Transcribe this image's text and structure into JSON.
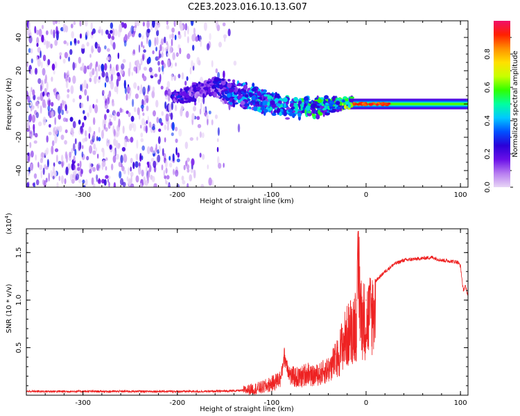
{
  "title": "C2E3.2023.016.10.13.G07",
  "chart_data": [
    {
      "type": "heatmap",
      "xlabel": "Height of straight line (km)",
      "ylabel": "Frequency (Hz)",
      "xlim": [
        -360,
        108
      ],
      "ylim": [
        -50,
        50
      ],
      "x_ticks": [
        {
          "value": -300,
          "label": "-300"
        },
        {
          "value": -200,
          "label": "-200"
        },
        {
          "value": -100,
          "label": "-100"
        },
        {
          "value": 0,
          "label": "0"
        },
        {
          "value": 100,
          "label": "100"
        }
      ],
      "y_ticks": [
        {
          "value": -40,
          "label": "-40"
        },
        {
          "value": -20,
          "label": "-20"
        },
        {
          "value": 0,
          "label": "0"
        },
        {
          "value": 20,
          "label": "20"
        },
        {
          "value": 40,
          "label": "40"
        }
      ],
      "colorbar": {
        "label": "Normalized spectral amplitude",
        "range": [
          0,
          1
        ],
        "ticks": [
          {
            "value": 0.0,
            "label": "0.0"
          },
          {
            "value": 0.2,
            "label": "0.2"
          },
          {
            "value": 0.4,
            "label": "0.4"
          },
          {
            "value": 0.6,
            "label": "0.6"
          },
          {
            "value": 0.8,
            "label": "0.8"
          }
        ],
        "colors": [
          "#e8d6f6",
          "#b77cf0",
          "#6a0fe8",
          "#2a00d8",
          "#0050ff",
          "#00c8ff",
          "#00ffa0",
          "#30ff00",
          "#c8ff00",
          "#ffe000",
          "#ff9000",
          "#ff2000",
          "#f0106a"
        ]
      },
      "signal_band": [
        {
          "x": -200,
          "f_center": 4,
          "f_halfwidth": 3,
          "amp": 0.25
        },
        {
          "x": -165,
          "f_center": 10,
          "f_halfwidth": 5,
          "amp": 0.2
        },
        {
          "x": -140,
          "f_center": 7,
          "f_halfwidth": 6,
          "amp": 0.35
        },
        {
          "x": -120,
          "f_center": 4,
          "f_halfwidth": 6,
          "amp": 0.4
        },
        {
          "x": -100,
          "f_center": 1,
          "f_halfwidth": 6,
          "amp": 0.4
        },
        {
          "x": -80,
          "f_center": -2,
          "f_halfwidth": 5,
          "amp": 0.45
        },
        {
          "x": -60,
          "f_center": -2,
          "f_halfwidth": 5,
          "amp": 0.5
        },
        {
          "x": -40,
          "f_center": -1,
          "f_halfwidth": 4,
          "amp": 0.5
        },
        {
          "x": -20,
          "f_center": 1,
          "f_halfwidth": 3,
          "amp": 0.6
        },
        {
          "x": 0,
          "f_center": 0,
          "f_halfwidth": 2,
          "amp": 0.9
        },
        {
          "x": 30,
          "f_center": 0,
          "f_halfwidth": 2,
          "amp": 0.6
        },
        {
          "x": 70,
          "f_center": 0,
          "f_halfwidth": 2,
          "amp": 0.6
        },
        {
          "x": 105,
          "f_center": 0,
          "f_halfwidth": 2,
          "amp": 0.6
        }
      ]
    },
    {
      "type": "line",
      "xlabel": "Height of straight line (km)",
      "ylabel": "SNR (10 * v/v)",
      "y_exponent_label": "(x10",
      "y_exponent_sup": "4",
      "y_exponent_close": ")",
      "xlim": [
        -360,
        108
      ],
      "ylim": [
        0,
        1.75
      ],
      "x_ticks": [
        {
          "value": -300,
          "label": "-300"
        },
        {
          "value": -200,
          "label": "-200"
        },
        {
          "value": -100,
          "label": "-100"
        },
        {
          "value": 0,
          "label": "0"
        },
        {
          "value": 100,
          "label": "100"
        }
      ],
      "y_ticks": [
        {
          "value": 0.5,
          "label": "0.5"
        },
        {
          "value": 1.0,
          "label": "1.0"
        },
        {
          "value": 1.5,
          "label": "1.5"
        }
      ],
      "color": "#ee2222",
      "series": [
        {
          "x": [
            -360,
            -300,
            -250,
            -200,
            -160,
            -130,
            -110,
            -100,
            -90,
            -87,
            -80,
            -70,
            -60,
            -50,
            -40,
            -30,
            -25,
            -20,
            -15,
            -10,
            -8,
            -5,
            0,
            10,
            20,
            30,
            40,
            50,
            60,
            70,
            80,
            90,
            97,
            100,
            103,
            105,
            108
          ],
          "y": [
            0.04,
            0.04,
            0.04,
            0.04,
            0.04,
            0.05,
            0.08,
            0.12,
            0.18,
            0.42,
            0.2,
            0.18,
            0.25,
            0.28,
            0.35,
            0.5,
            0.7,
            0.8,
            0.9,
            1.0,
            1.7,
            1.05,
            1.0,
            1.2,
            1.3,
            1.38,
            1.42,
            1.43,
            1.44,
            1.45,
            1.42,
            1.41,
            1.4,
            1.36,
            1.1,
            1.15,
            1.05
          ]
        }
      ]
    }
  ]
}
